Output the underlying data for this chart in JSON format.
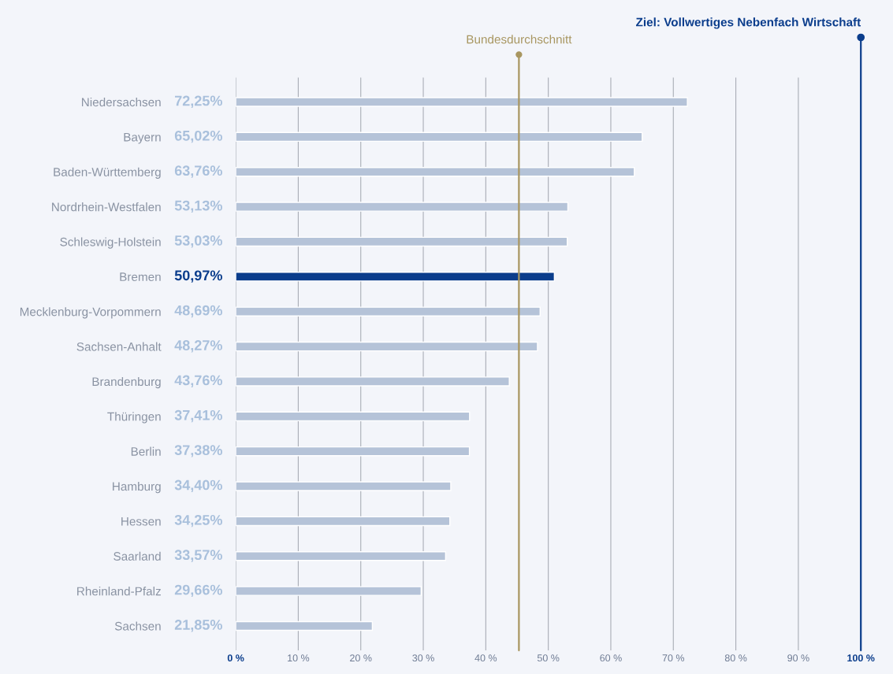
{
  "chart_data": {
    "type": "bar",
    "orientation": "horizontal",
    "categories": [
      "Niedersachsen",
      "Bayern",
      "Baden-Württemberg",
      "Nordrhein-Westfalen",
      "Schleswig-Holstein",
      "Bremen",
      "Mecklenburg-Vorpommern",
      "Sachsen-Anhalt",
      "Brandenburg",
      "Thüringen",
      "Berlin",
      "Hamburg",
      "Hessen",
      "Saarland",
      "Rheinland-Pfalz",
      "Sachsen"
    ],
    "values": [
      72.25,
      65.02,
      63.76,
      53.13,
      53.03,
      50.97,
      48.69,
      48.27,
      43.76,
      37.41,
      37.38,
      34.4,
      34.25,
      33.57,
      29.66,
      21.85
    ],
    "value_labels": [
      "72,25%",
      "65,02%",
      "63,76%",
      "53,13%",
      "53,03%",
      "50,97%",
      "48,69%",
      "48,27%",
      "43,76%",
      "37,41%",
      "37,38%",
      "34,40%",
      "34,25%",
      "33,57%",
      "29,66%",
      "21,85%"
    ],
    "colors": [
      "#b5c3d8",
      "#b5c3d8",
      "#b5c3d8",
      "#b5c3d8",
      "#b5c3d8",
      "#0b3d8c",
      "#b5c3d8",
      "#b5c3d8",
      "#b5c3d8",
      "#b5c3d8",
      "#b5c3d8",
      "#b5c3d8",
      "#b5c3d8",
      "#b5c3d8",
      "#b5c3d8",
      "#b5c3d8"
    ],
    "xlim": [
      0,
      100
    ],
    "xticks": [
      {
        "value": 0,
        "label": "0 %"
      },
      {
        "value": 10,
        "label": "10 %"
      },
      {
        "value": 20,
        "label": "20 %"
      },
      {
        "value": 30,
        "label": "30 %"
      },
      {
        "value": 40,
        "label": "40 %"
      },
      {
        "value": 50,
        "label": "50 %"
      },
      {
        "value": 60,
        "label": "60 %"
      },
      {
        "value": 70,
        "label": "70 %"
      },
      {
        "value": 80,
        "label": "80 %"
      },
      {
        "value": 90,
        "label": "90 %"
      },
      {
        "value": 100,
        "label": "100 %"
      }
    ],
    "grid": "x",
    "ref_lines": [
      {
        "axis": "x",
        "value": 45.3,
        "label": "Bundesdurchschnitt",
        "color": "#a89660"
      },
      {
        "axis": "x",
        "value": 100,
        "label": "Ziel: Vollwertiges Nebenfach Wirtschaft",
        "color": "#0b3d8c"
      }
    ]
  }
}
